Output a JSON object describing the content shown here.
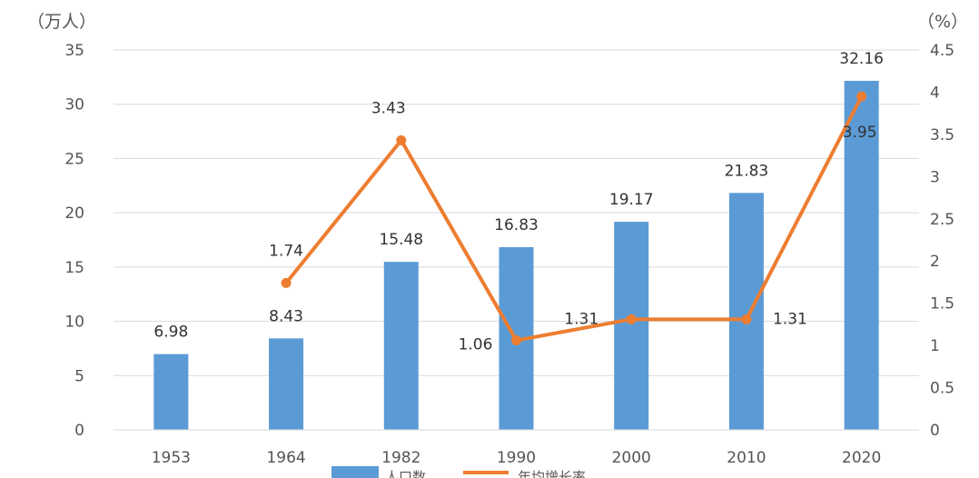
{
  "chart_data": {
    "type": "bar+line",
    "categories": [
      "1953",
      "1964",
      "1982",
      "1990",
      "2000",
      "2010",
      "2020"
    ],
    "series": [
      {
        "name": "人口数",
        "type": "bar",
        "axis": "left",
        "color": "#5b9bd5",
        "values": [
          6.98,
          8.43,
          15.48,
          16.83,
          19.17,
          21.83,
          32.16
        ],
        "labels": [
          "6.98",
          "8.43",
          "15.48",
          "16.83",
          "19.17",
          "21.83",
          "32.16"
        ]
      },
      {
        "name": "年均增长率",
        "type": "line",
        "axis": "right",
        "color": "#ed7d31",
        "values": [
          null,
          1.74,
          3.43,
          1.06,
          1.31,
          1.31,
          3.95
        ],
        "labels": [
          null,
          "1.74",
          "3.43",
          "1.06",
          "1.31",
          "1.31",
          "3.95"
        ]
      }
    ],
    "y_left": {
      "unit": "（万人）",
      "min": 0,
      "max": 35,
      "step": 5,
      "ticks": [
        "0",
        "5",
        "10",
        "15",
        "20",
        "25",
        "30",
        "35"
      ]
    },
    "y_right": {
      "unit": "（%）",
      "min": 0,
      "max": 4.5,
      "step": 0.5,
      "ticks": [
        "0",
        "0.5",
        "1",
        "1.5",
        "2",
        "2.5",
        "3",
        "3.5",
        "4",
        "4.5"
      ]
    },
    "grid": true,
    "legend_position": "bottom"
  }
}
